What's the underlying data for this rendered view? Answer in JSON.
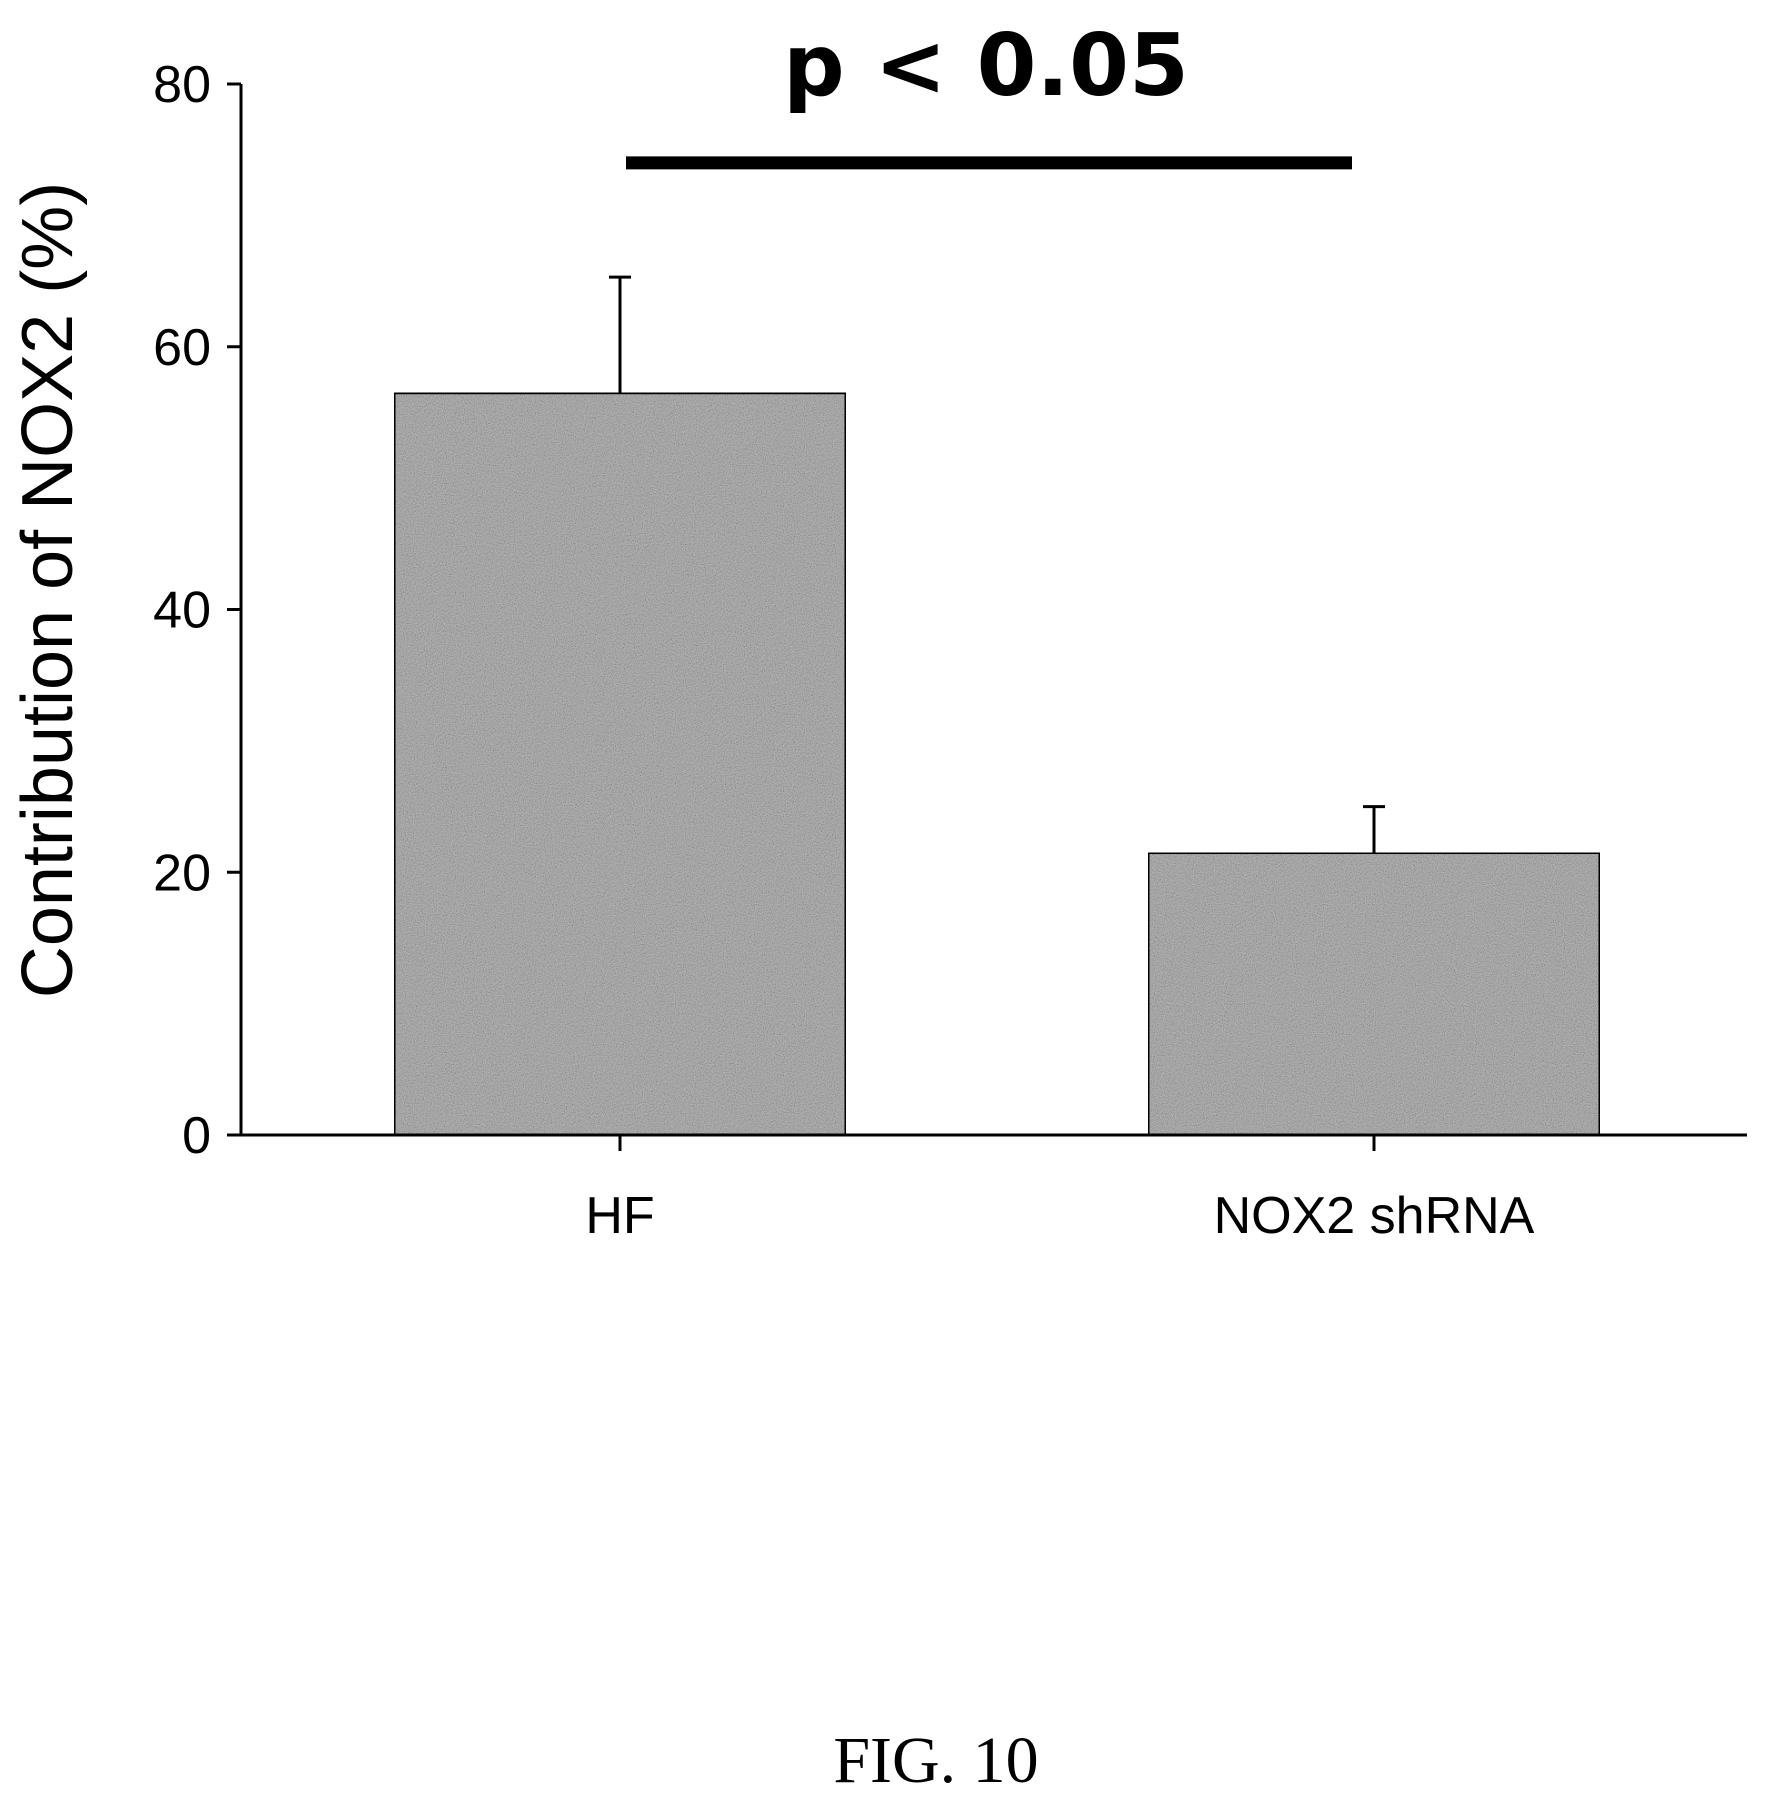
{
  "chart_data": {
    "type": "bar",
    "categories": [
      "HF",
      "NOX2 shRNA"
    ],
    "values": [
      56.5,
      21.5
    ],
    "error_upper": [
      65.3,
      25.0
    ],
    "title": "",
    "xlabel": "",
    "ylabel": "Contribution of NOX2 (%)",
    "ylim": [
      0,
      80
    ],
    "yticks": [
      "0",
      "20",
      "40",
      "60",
      "80"
    ],
    "grid": false,
    "legend": "none",
    "bar_color": "#b8b8b8",
    "annotation": {
      "text": "p < 0.05",
      "between": [
        "HF",
        "NOX2 shRNA"
      ],
      "y": 74
    }
  },
  "figure": {
    "caption": "FIG. 10"
  }
}
